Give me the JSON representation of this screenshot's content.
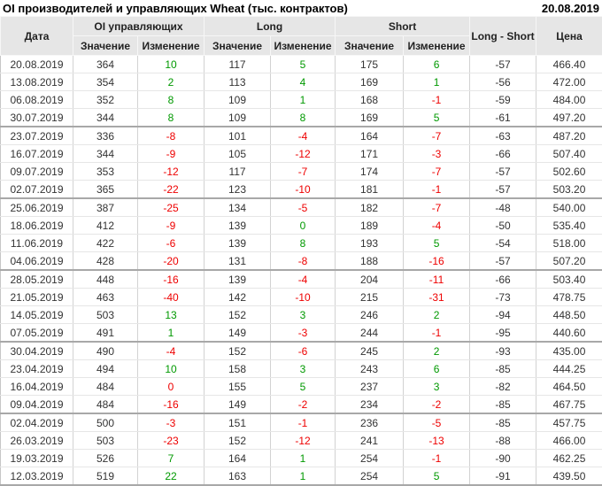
{
  "title": "OI производителей и управляющих Wheat (тыс. контрактов)",
  "report_date": "20.08.2019",
  "colors": {
    "positive": "#009900",
    "negative": "#ee0000",
    "header_bg": "#e6e6e6",
    "group_border": "#a8a8a8"
  },
  "table": {
    "headers": {
      "date": "Дата",
      "oi_group": "OI управляющих",
      "long_group": "Long",
      "short_group": "Short",
      "long_short": "Long - Short",
      "price": "Цена",
      "value": "Значение",
      "change": "Изменение"
    },
    "rows": [
      {
        "c": [
          "20.08.2019",
          "364",
          "10",
          "117",
          "5",
          "175",
          "6",
          "-57",
          "466.40"
        ],
        "chg": [
          "g",
          "g",
          "g"
        ]
      },
      {
        "c": [
          "13.08.2019",
          "354",
          "2",
          "113",
          "4",
          "169",
          "1",
          "-56",
          "472.00"
        ],
        "chg": [
          "g",
          "g",
          "g"
        ]
      },
      {
        "c": [
          "06.08.2019",
          "352",
          "8",
          "109",
          "1",
          "168",
          "-1",
          "-59",
          "484.00"
        ],
        "chg": [
          "g",
          "g",
          "r"
        ]
      },
      {
        "c": [
          "30.07.2019",
          "344",
          "8",
          "109",
          "8",
          "169",
          "5",
          "-61",
          "497.20"
        ],
        "chg": [
          "g",
          "g",
          "g"
        ]
      },
      {
        "c": [
          "23.07.2019",
          "336",
          "-8",
          "101",
          "-4",
          "164",
          "-7",
          "-63",
          "487.20"
        ],
        "chg": [
          "r",
          "r",
          "r"
        ]
      },
      {
        "c": [
          "16.07.2019",
          "344",
          "-9",
          "105",
          "-12",
          "171",
          "-3",
          "-66",
          "507.40"
        ],
        "chg": [
          "r",
          "r",
          "r"
        ]
      },
      {
        "c": [
          "09.07.2019",
          "353",
          "-12",
          "117",
          "-7",
          "174",
          "-7",
          "-57",
          "502.60"
        ],
        "chg": [
          "r",
          "r",
          "r"
        ]
      },
      {
        "c": [
          "02.07.2019",
          "365",
          "-22",
          "123",
          "-10",
          "181",
          "-1",
          "-57",
          "503.20"
        ],
        "chg": [
          "r",
          "r",
          "r"
        ]
      },
      {
        "c": [
          "25.06.2019",
          "387",
          "-25",
          "134",
          "-5",
          "182",
          "-7",
          "-48",
          "540.00"
        ],
        "chg": [
          "r",
          "r",
          "r"
        ]
      },
      {
        "c": [
          "18.06.2019",
          "412",
          "-9",
          "139",
          "0",
          "189",
          "-4",
          "-50",
          "535.40"
        ],
        "chg": [
          "r",
          "g",
          "r"
        ]
      },
      {
        "c": [
          "11.06.2019",
          "422",
          "-6",
          "139",
          "8",
          "193",
          "5",
          "-54",
          "518.00"
        ],
        "chg": [
          "r",
          "g",
          "g"
        ]
      },
      {
        "c": [
          "04.06.2019",
          "428",
          "-20",
          "131",
          "-8",
          "188",
          "-16",
          "-57",
          "507.20"
        ],
        "chg": [
          "r",
          "r",
          "r"
        ]
      },
      {
        "c": [
          "28.05.2019",
          "448",
          "-16",
          "139",
          "-4",
          "204",
          "-11",
          "-66",
          "503.40"
        ],
        "chg": [
          "r",
          "r",
          "r"
        ]
      },
      {
        "c": [
          "21.05.2019",
          "463",
          "-40",
          "142",
          "-10",
          "215",
          "-31",
          "-73",
          "478.75"
        ],
        "chg": [
          "r",
          "r",
          "r"
        ]
      },
      {
        "c": [
          "14.05.2019",
          "503",
          "13",
          "152",
          "3",
          "246",
          "2",
          "-94",
          "448.50"
        ],
        "chg": [
          "g",
          "g",
          "g"
        ]
      },
      {
        "c": [
          "07.05.2019",
          "491",
          "1",
          "149",
          "-3",
          "244",
          "-1",
          "-95",
          "440.60"
        ],
        "chg": [
          "g",
          "r",
          "r"
        ]
      },
      {
        "c": [
          "30.04.2019",
          "490",
          "-4",
          "152",
          "-6",
          "245",
          "2",
          "-93",
          "435.00"
        ],
        "chg": [
          "r",
          "r",
          "g"
        ]
      },
      {
        "c": [
          "23.04.2019",
          "494",
          "10",
          "158",
          "3",
          "243",
          "6",
          "-85",
          "444.25"
        ],
        "chg": [
          "g",
          "g",
          "g"
        ]
      },
      {
        "c": [
          "16.04.2019",
          "484",
          "0",
          "155",
          "5",
          "237",
          "3",
          "-82",
          "464.50"
        ],
        "chg": [
          "r",
          "g",
          "g"
        ]
      },
      {
        "c": [
          "09.04.2019",
          "484",
          "-16",
          "149",
          "-2",
          "234",
          "-2",
          "-85",
          "467.75"
        ],
        "chg": [
          "r",
          "r",
          "r"
        ]
      },
      {
        "c": [
          "02.04.2019",
          "500",
          "-3",
          "151",
          "-1",
          "236",
          "-5",
          "-85",
          "457.75"
        ],
        "chg": [
          "r",
          "r",
          "r"
        ]
      },
      {
        "c": [
          "26.03.2019",
          "503",
          "-23",
          "152",
          "-12",
          "241",
          "-13",
          "-88",
          "466.00"
        ],
        "chg": [
          "r",
          "r",
          "r"
        ]
      },
      {
        "c": [
          "19.03.2019",
          "526",
          "7",
          "164",
          "1",
          "254",
          "-1",
          "-90",
          "462.25"
        ],
        "chg": [
          "g",
          "g",
          "r"
        ]
      },
      {
        "c": [
          "12.03.2019",
          "519",
          "22",
          "163",
          "1",
          "254",
          "5",
          "-91",
          "439.50"
        ],
        "chg": [
          "g",
          "g",
          "g"
        ]
      }
    ]
  }
}
